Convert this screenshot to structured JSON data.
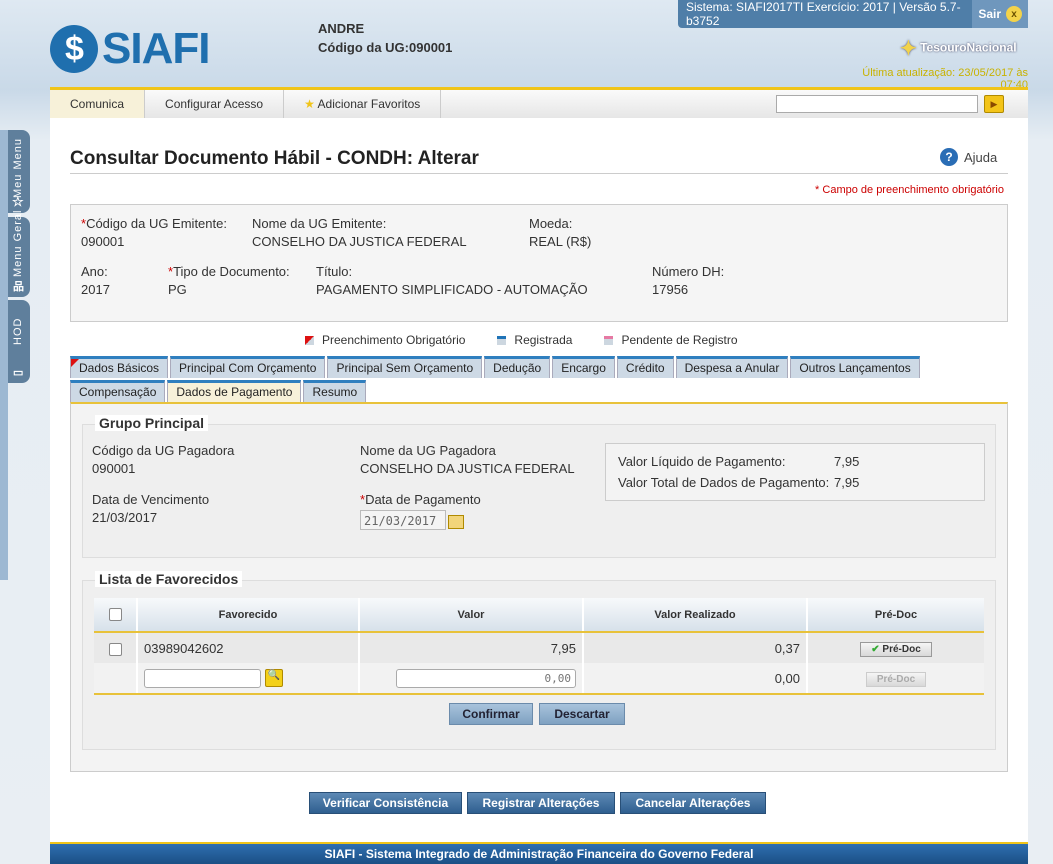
{
  "top": {
    "system_info": "Sistema: SIAFI2017TI Exercício: 2017 | Versão 5.7-b3752",
    "logout": "Sair",
    "logo": "SIAFI",
    "user": "ANDRE",
    "ug_label": "Código da UG:",
    "ug_value": "090001",
    "brand": "TesouroNacional",
    "last_update": "Última atualização: 23/05/2017 às 07:40"
  },
  "menu": {
    "items": [
      "Comunica",
      "Configurar Acesso",
      "Adicionar Favoritos"
    ],
    "search_placeholder": ""
  },
  "side_tabs": [
    "Meu Menu",
    "Menu Geral",
    "HOD"
  ],
  "page": {
    "title": "Consultar Documento Hábil - CONDH: Alterar",
    "help": "Ajuda",
    "required_note": "* Campo de preenchimento obrigatório"
  },
  "header": {
    "ug_emitente_label": "Código da UG Emitente:",
    "ug_emitente": "090001",
    "nome_ug_label": "Nome da UG Emitente:",
    "nome_ug": "CONSELHO DA JUSTICA FEDERAL",
    "moeda_label": "Moeda:",
    "moeda": "REAL (R$)",
    "ano_label": "Ano:",
    "ano": "2017",
    "tipo_label": "Tipo de Documento:",
    "tipo": "PG",
    "titulo_label": "Título:",
    "titulo": "PAGAMENTO SIMPLIFICADO - AUTOMAÇÃO",
    "numero_label": "Número DH:",
    "numero": "17956"
  },
  "legend": [
    "Preenchimento Obrigatório",
    "Registrada",
    "Pendente de Registro"
  ],
  "tabs_row1": [
    "Dados Básicos",
    "Principal Com Orçamento",
    "Principal Sem Orçamento",
    "Dedução",
    "Encargo",
    "Crédito",
    "Despesa a Anular",
    "Outros Lançamentos"
  ],
  "tabs_row2": [
    "Compensação",
    "Dados de Pagamento",
    "Resumo"
  ],
  "active_tab": "Dados de Pagamento",
  "grupo": {
    "title": "Grupo Principal",
    "ug_pag_label": "Código da UG Pagadora",
    "ug_pag": "090001",
    "nome_pag_label": "Nome da UG Pagadora",
    "nome_pag": "CONSELHO DA JUSTICA FEDERAL",
    "venc_label": "Data de Vencimento",
    "venc": "21/03/2017",
    "pag_label": "Data de Pagamento",
    "pag": "21/03/2017",
    "liq_label": "Valor Líquido de Pagamento:",
    "liq": "7,95",
    "total_label": "Valor Total de Dados de Pagamento:",
    "total": "7,95"
  },
  "lista": {
    "title": "Lista de Favorecidos",
    "columns": [
      "Favorecido",
      "Valor",
      "Valor Realizado",
      "Pré-Doc"
    ],
    "rows": [
      {
        "favorecido": "03989042602",
        "valor": "7,95",
        "realizado": "0,37",
        "predoc": "Pré-Doc"
      }
    ],
    "new_row": {
      "valor_placeholder": "0,00",
      "realizado": "0,00",
      "predoc": "Pré-Doc"
    },
    "confirm": "Confirmar",
    "discard": "Descartar"
  },
  "actions": [
    "Verificar Consistência",
    "Registrar Alterações",
    "Cancelar Alterações"
  ],
  "footer": "SIAFI - Sistema Integrado de Administração Financeira do Governo Federal"
}
